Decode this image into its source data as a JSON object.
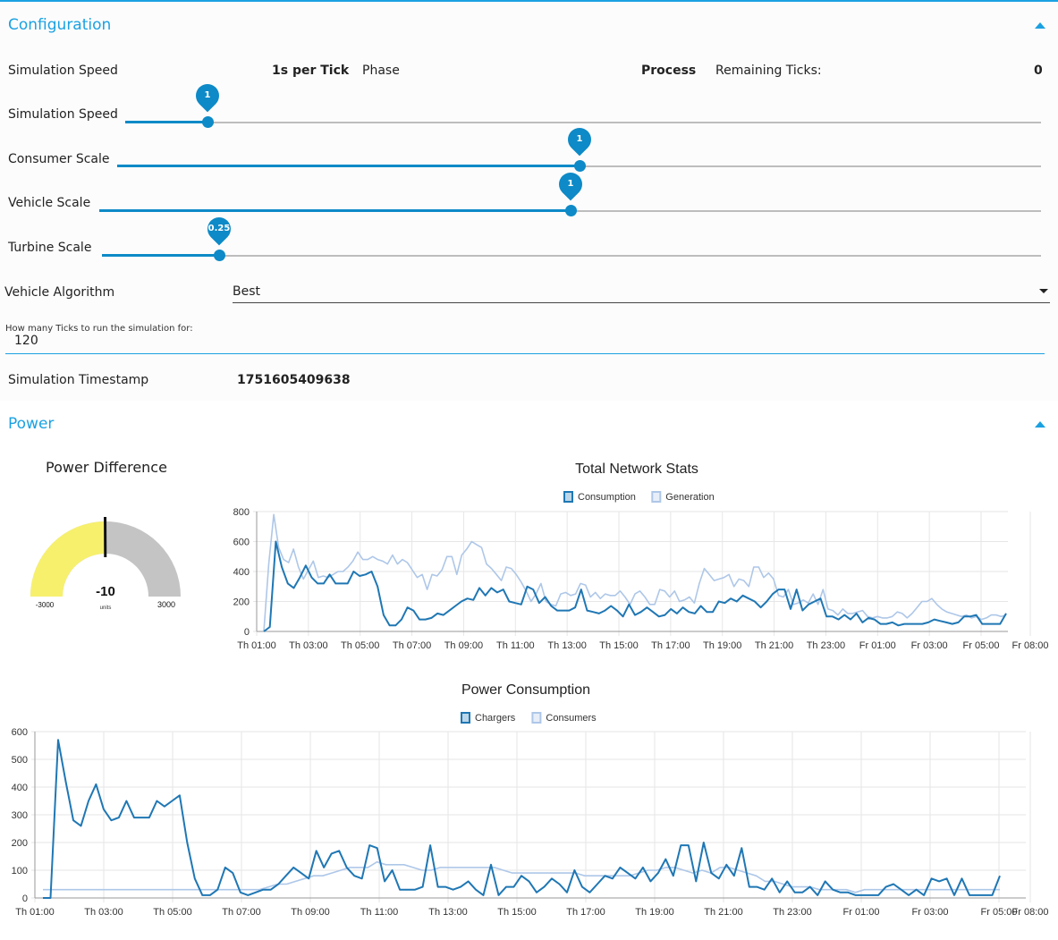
{
  "config": {
    "title": "Configuration",
    "sim_speed_label": "Simulation Speed",
    "sim_speed_value": "1s per Tick",
    "phase_label": "Phase",
    "phase_value": "Process",
    "remaining_label": "Remaining Ticks:",
    "remaining_value": "0",
    "sliders": [
      {
        "label": "Simulation Speed",
        "value_label": "1",
        "fraction": 0.09
      },
      {
        "label": "Consumer Scale",
        "value_label": "1",
        "fraction": 0.5
      },
      {
        "label": "Vehicle Scale",
        "value_label": "1",
        "fraction": 0.5
      },
      {
        "label": "Turbine Scale",
        "value_label": "0.25",
        "fraction": 0.125
      }
    ],
    "algorithm_label": "Vehicle Algorithm",
    "algorithm_value": "Best",
    "ticks_label": "How many Ticks to run the simulation for:",
    "ticks_value": "120",
    "timestamp_label": "Simulation Timestamp",
    "timestamp_value": "1751605409638"
  },
  "power": {
    "title": "Power",
    "gauge": {
      "title": "Power Difference",
      "value": "-10",
      "units": "units",
      "min_label": "-3000",
      "max_label": "3000",
      "numeric_value": -10,
      "min": -3000,
      "max": 3000,
      "fill_color": "#f7f06d",
      "bg_color": "#c4c4c4"
    }
  },
  "colors": {
    "accent": "#1ba1e2",
    "series_dark": "#1f77b4",
    "series_light": "#aec7e8"
  },
  "chart_data": [
    {
      "type": "line",
      "title": "Total Network Stats",
      "x_tick_labels": [
        "Th 01:00",
        "Th 03:00",
        "Th 05:00",
        "Th 07:00",
        "Th 09:00",
        "Th 11:00",
        "Th 13:00",
        "Th 15:00",
        "Th 17:00",
        "Th 19:00",
        "Th 21:00",
        "Th 23:00",
        "Fr 01:00",
        "Fr 03:00",
        "Fr 05:00",
        "Fr 08:00"
      ],
      "x_range": [
        "Th 01:00",
        "Fr 08:00"
      ],
      "ylim": [
        0,
        800
      ],
      "y_ticks": [
        0,
        200,
        400,
        600,
        800
      ],
      "grid": true,
      "legend_position": "top-center",
      "series": [
        {
          "name": "Consumption",
          "color": "#1f77b4",
          "values": [
            0,
            30,
            600,
            430,
            320,
            290,
            360,
            440,
            360,
            320,
            320,
            380,
            320,
            320,
            320,
            400,
            370,
            380,
            400,
            300,
            110,
            40,
            40,
            80,
            160,
            140,
            80,
            80,
            90,
            120,
            110,
            140,
            170,
            200,
            220,
            210,
            290,
            240,
            290,
            260,
            280,
            200,
            190,
            180,
            300,
            280,
            190,
            230,
            170,
            140,
            140,
            140,
            160,
            280,
            140,
            130,
            120,
            140,
            170,
            140,
            100,
            180,
            110,
            130,
            160,
            130,
            100,
            110,
            150,
            120,
            160,
            130,
            120,
            170,
            130,
            130,
            200,
            190,
            220,
            200,
            240,
            220,
            200,
            160,
            200,
            250,
            280,
            280,
            150,
            280,
            140,
            180,
            200,
            220,
            100,
            100,
            80,
            110,
            80,
            120,
            60,
            90,
            80,
            50,
            50,
            60,
            40,
            50,
            50,
            50,
            50,
            60,
            80,
            70,
            60,
            50,
            60,
            100,
            100,
            110,
            50,
            50,
            50,
            50,
            120
          ]
        },
        {
          "name": "Generation",
          "color": "#aec7e8",
          "values": [
            0,
            450,
            780,
            560,
            480,
            460,
            550,
            430,
            350,
            410,
            470,
            360,
            370,
            360,
            380,
            400,
            400,
            430,
            470,
            530,
            480,
            480,
            500,
            480,
            470,
            450,
            510,
            450,
            480,
            460,
            410,
            360,
            380,
            280,
            380,
            370,
            410,
            500,
            500,
            380,
            510,
            550,
            600,
            580,
            560,
            450,
            420,
            380,
            340,
            430,
            420,
            380,
            330,
            270,
            200,
            250,
            320,
            200,
            180,
            170,
            250,
            260,
            240,
            250,
            320,
            310,
            230,
            260,
            220,
            250,
            240,
            240,
            270,
            230,
            180,
            250,
            270,
            230,
            180,
            180,
            280,
            270,
            230,
            270,
            200,
            210,
            230,
            190,
            320,
            420,
            380,
            340,
            350,
            360,
            380,
            300,
            350,
            340,
            300,
            430,
            430,
            360,
            390,
            350,
            240,
            230,
            280,
            180,
            190,
            210,
            190,
            250,
            180,
            280,
            150,
            140,
            110,
            150,
            120,
            120,
            130,
            140,
            100,
            90,
            100,
            90,
            90,
            100,
            130,
            120,
            90,
            120,
            160,
            200,
            200,
            220,
            180,
            150,
            130,
            120,
            110,
            100,
            110,
            90,
            100,
            80,
            90,
            110,
            110,
            100,
            110
          ]
        }
      ]
    },
    {
      "type": "line",
      "title": "Power Consumption",
      "x_tick_labels": [
        "Th 01:00",
        "Th 03:00",
        "Th 05:00",
        "Th 07:00",
        "Th 09:00",
        "Th 11:00",
        "Th 13:00",
        "Th 15:00",
        "Th 17:00",
        "Th 19:00",
        "Th 21:00",
        "Th 23:00",
        "Fr 01:00",
        "Fr 03:00",
        "Fr 05:00",
        "Fr 08:00"
      ],
      "x_range": [
        "Th 01:00",
        "Fr 08:00"
      ],
      "ylim": [
        0,
        600
      ],
      "y_ticks": [
        0,
        100,
        200,
        300,
        400,
        500,
        600
      ],
      "grid": true,
      "legend_position": "top-center",
      "series": [
        {
          "name": "Chargers",
          "color": "#1f77b4",
          "values": [
            0,
            0,
            570,
            420,
            280,
            260,
            350,
            410,
            320,
            280,
            290,
            350,
            290,
            290,
            290,
            350,
            330,
            350,
            370,
            200,
            70,
            10,
            10,
            30,
            110,
            90,
            20,
            10,
            20,
            30,
            30,
            50,
            80,
            110,
            90,
            70,
            170,
            110,
            160,
            170,
            110,
            80,
            70,
            190,
            180,
            60,
            100,
            30,
            30,
            30,
            40,
            190,
            40,
            40,
            30,
            40,
            60,
            30,
            10,
            120,
            10,
            40,
            40,
            80,
            60,
            20,
            40,
            70,
            50,
            20,
            100,
            40,
            20,
            50,
            80,
            70,
            110,
            90,
            70,
            110,
            60,
            90,
            140,
            80,
            190,
            190,
            60,
            200,
            90,
            70,
            120,
            80,
            180,
            40,
            40,
            30,
            70,
            20,
            60,
            20,
            20,
            40,
            10,
            60,
            30,
            20,
            20,
            10,
            10,
            10,
            10,
            40,
            50,
            30,
            10,
            30,
            10,
            70,
            60,
            70,
            10,
            70,
            10,
            10,
            10,
            10,
            80
          ]
        },
        {
          "name": "Consumers",
          "color": "#aec7e8",
          "values": [
            30,
            30,
            30,
            30,
            30,
            30,
            30,
            30,
            30,
            30,
            30,
            30,
            30,
            30,
            30,
            30,
            30,
            30,
            30,
            30,
            30,
            30,
            30,
            30,
            30,
            40,
            50,
            50,
            60,
            70,
            80,
            80,
            90,
            100,
            110,
            110,
            110,
            130,
            120,
            120,
            120,
            110,
            100,
            100,
            110,
            110,
            110,
            110,
            110,
            110,
            110,
            100,
            90,
            90,
            90,
            90,
            90,
            90,
            90,
            90,
            80,
            80,
            80,
            80,
            80,
            80,
            90,
            100,
            100,
            110,
            110,
            100,
            90,
            100,
            90,
            110,
            110,
            100,
            90,
            80,
            60,
            60,
            50,
            40,
            40,
            40,
            30,
            30,
            30,
            30,
            20,
            30,
            30,
            30,
            30,
            30,
            30,
            30,
            30,
            30,
            30,
            30,
            30,
            30,
            30,
            30,
            30
          ]
        }
      ]
    }
  ]
}
